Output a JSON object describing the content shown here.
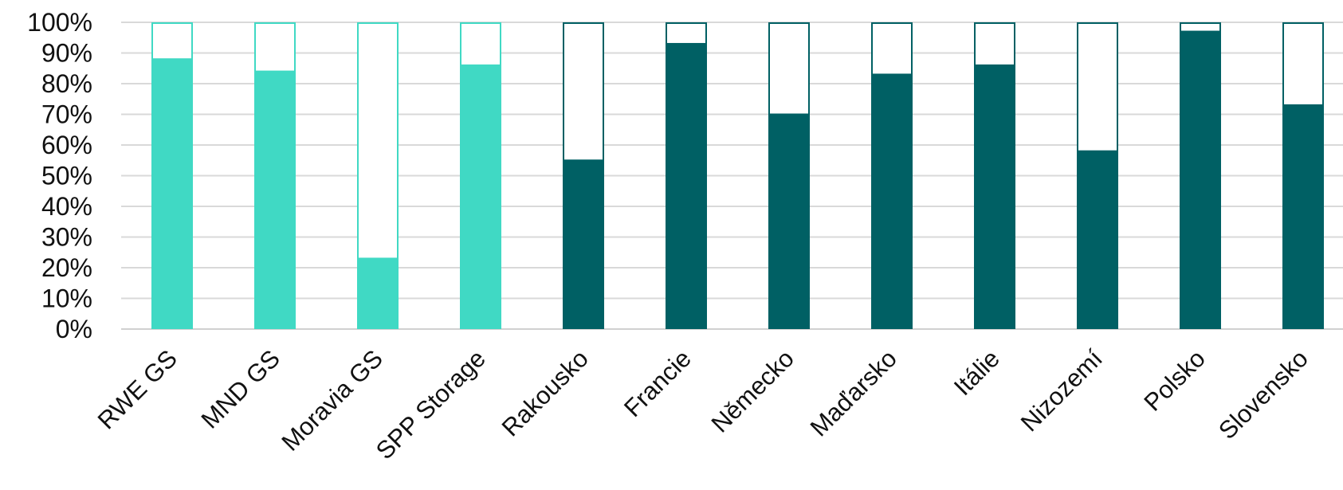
{
  "colors": {
    "storage": "#40d9c4",
    "country": "#006064",
    "background": "#ffffff",
    "grid": "#d9d9d9"
  },
  "chart_data": {
    "type": "bar",
    "stacked_percent": true,
    "title": "",
    "xlabel": "",
    "ylabel": "",
    "ylim": [
      0,
      100
    ],
    "yticks": [
      "0%",
      "10%",
      "20%",
      "30%",
      "40%",
      "50%",
      "60%",
      "70%",
      "80%",
      "90%",
      "100%"
    ],
    "grid": true,
    "legend": "none",
    "categories": [
      "RWE GS",
      "MND GS",
      "Moravia GS",
      "SPP Storage",
      "Rakousko",
      "Francie",
      "Německo",
      "Maďarsko",
      "Itálie",
      "Nizozemí",
      "Polsko",
      "Slovensko"
    ],
    "category_group": [
      "storage",
      "storage",
      "storage",
      "storage",
      "country",
      "country",
      "country",
      "country",
      "country",
      "country",
      "country",
      "country"
    ],
    "series": [
      {
        "values": [
          88,
          84,
          23,
          86,
          55,
          93,
          70,
          83,
          86,
          58,
          97,
          73
        ]
      },
      {
        "values": [
          12,
          16,
          77,
          14,
          45,
          7,
          30,
          17,
          14,
          42,
          3,
          27
        ]
      }
    ]
  }
}
